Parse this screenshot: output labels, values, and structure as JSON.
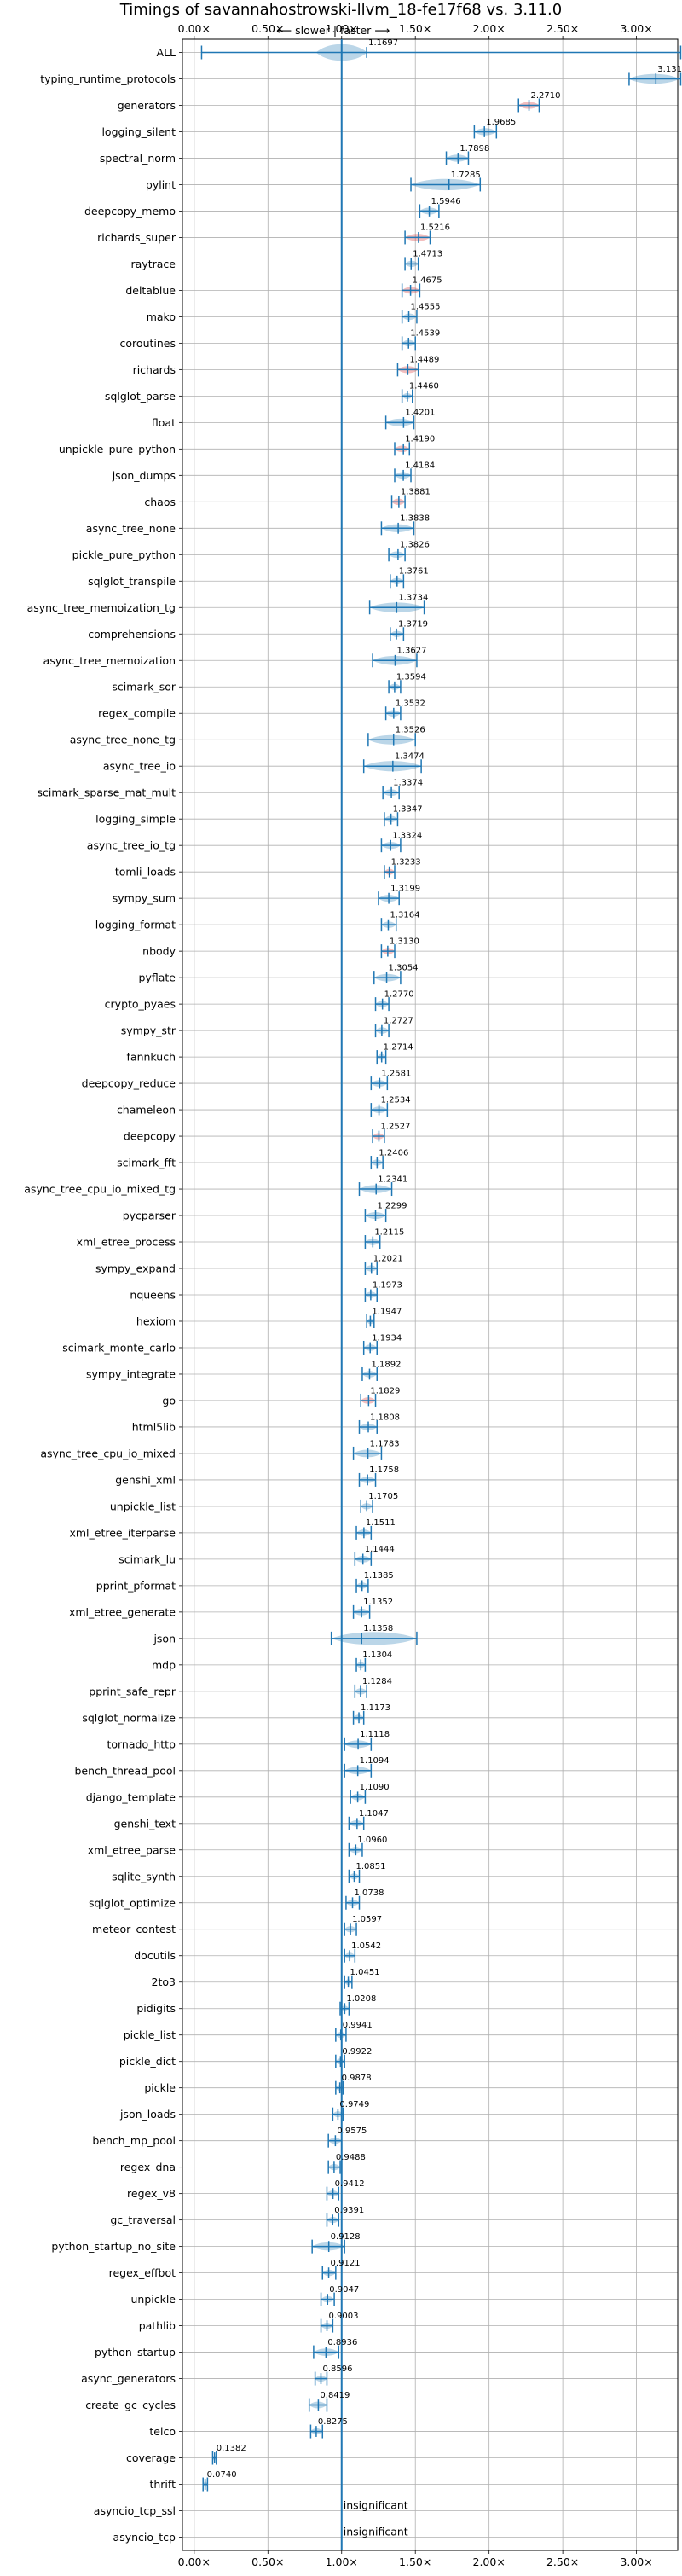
{
  "chart_data": {
    "type": "violin",
    "title": "Timings of savannahostrowski-llvm_18-fe17f68 vs. 3.11.0",
    "direction_label": "⟵ slower | faster ⟶",
    "x_ticks": [
      "0.00×",
      "0.50×",
      "1.00×",
      "1.50×",
      "2.00×",
      "2.50×",
      "3.00×"
    ],
    "x_tick_values": [
      0,
      0.5,
      1.0,
      1.5,
      2.0,
      2.5,
      3.0
    ],
    "xlim": [
      -0.08,
      3.28
    ],
    "reference_line": 1.0,
    "insignificant_text": "insignificant",
    "benchmarks": [
      {
        "name": "ALL",
        "value": 1.1697,
        "low": 0.05,
        "high": 3.3,
        "color": "blue"
      },
      {
        "name": "typing_runtime_protocols",
        "value": 3.1314,
        "low": 2.95,
        "high": 3.3,
        "color": "blue"
      },
      {
        "name": "generators",
        "value": 2.271,
        "low": 2.2,
        "high": 2.34,
        "color": "red"
      },
      {
        "name": "logging_silent",
        "value": 1.9685,
        "low": 1.9,
        "high": 2.05,
        "color": "blue"
      },
      {
        "name": "spectral_norm",
        "value": 1.7898,
        "low": 1.71,
        "high": 1.86,
        "color": "blue"
      },
      {
        "name": "pylint",
        "value": 1.7285,
        "low": 1.47,
        "high": 1.94,
        "color": "blue"
      },
      {
        "name": "deepcopy_memo",
        "value": 1.5946,
        "low": 1.53,
        "high": 1.66,
        "color": "blue"
      },
      {
        "name": "richards_super",
        "value": 1.5216,
        "low": 1.43,
        "high": 1.6,
        "color": "red"
      },
      {
        "name": "raytrace",
        "value": 1.4713,
        "low": 1.43,
        "high": 1.52,
        "color": "blue"
      },
      {
        "name": "deltablue",
        "value": 1.4675,
        "low": 1.41,
        "high": 1.53,
        "color": "red"
      },
      {
        "name": "mako",
        "value": 1.4555,
        "low": 1.41,
        "high": 1.51,
        "color": "blue"
      },
      {
        "name": "coroutines",
        "value": 1.4539,
        "low": 1.41,
        "high": 1.5,
        "color": "blue"
      },
      {
        "name": "richards",
        "value": 1.4489,
        "low": 1.38,
        "high": 1.52,
        "color": "red"
      },
      {
        "name": "sqlglot_parse",
        "value": 1.446,
        "low": 1.41,
        "high": 1.48,
        "color": "blue"
      },
      {
        "name": "float",
        "value": 1.4201,
        "low": 1.3,
        "high": 1.49,
        "color": "blue"
      },
      {
        "name": "unpickle_pure_python",
        "value": 1.419,
        "low": 1.36,
        "high": 1.46,
        "color": "red"
      },
      {
        "name": "json_dumps",
        "value": 1.4184,
        "low": 1.36,
        "high": 1.47,
        "color": "blue"
      },
      {
        "name": "chaos",
        "value": 1.3881,
        "low": 1.34,
        "high": 1.43,
        "color": "red"
      },
      {
        "name": "async_tree_none",
        "value": 1.3838,
        "low": 1.27,
        "high": 1.49,
        "color": "blue"
      },
      {
        "name": "pickle_pure_python",
        "value": 1.3826,
        "low": 1.32,
        "high": 1.43,
        "color": "blue"
      },
      {
        "name": "sqlglot_transpile",
        "value": 1.3761,
        "low": 1.33,
        "high": 1.42,
        "color": "blue"
      },
      {
        "name": "async_tree_memoization_tg",
        "value": 1.3734,
        "low": 1.19,
        "high": 1.56,
        "color": "blue"
      },
      {
        "name": "comprehensions",
        "value": 1.3719,
        "low": 1.33,
        "high": 1.42,
        "color": "blue"
      },
      {
        "name": "async_tree_memoization",
        "value": 1.3627,
        "low": 1.21,
        "high": 1.51,
        "color": "blue"
      },
      {
        "name": "scimark_sor",
        "value": 1.3594,
        "low": 1.32,
        "high": 1.4,
        "color": "blue"
      },
      {
        "name": "regex_compile",
        "value": 1.3532,
        "low": 1.3,
        "high": 1.4,
        "color": "blue"
      },
      {
        "name": "async_tree_none_tg",
        "value": 1.3526,
        "low": 1.18,
        "high": 1.5,
        "color": "blue"
      },
      {
        "name": "async_tree_io",
        "value": 1.3474,
        "low": 1.15,
        "high": 1.54,
        "color": "blue"
      },
      {
        "name": "scimark_sparse_mat_mult",
        "value": 1.3374,
        "low": 1.28,
        "high": 1.39,
        "color": "blue"
      },
      {
        "name": "logging_simple",
        "value": 1.3347,
        "low": 1.29,
        "high": 1.38,
        "color": "blue"
      },
      {
        "name": "async_tree_io_tg",
        "value": 1.3324,
        "low": 1.27,
        "high": 1.4,
        "color": "blue"
      },
      {
        "name": "tomli_loads",
        "value": 1.3233,
        "low": 1.29,
        "high": 1.36,
        "color": "red"
      },
      {
        "name": "sympy_sum",
        "value": 1.3199,
        "low": 1.25,
        "high": 1.39,
        "color": "blue"
      },
      {
        "name": "logging_format",
        "value": 1.3164,
        "low": 1.27,
        "high": 1.37,
        "color": "blue"
      },
      {
        "name": "nbody",
        "value": 1.313,
        "low": 1.27,
        "high": 1.36,
        "color": "red"
      },
      {
        "name": "pyflate",
        "value": 1.3054,
        "low": 1.22,
        "high": 1.4,
        "color": "blue"
      },
      {
        "name": "crypto_pyaes",
        "value": 1.277,
        "low": 1.23,
        "high": 1.32,
        "color": "blue"
      },
      {
        "name": "sympy_str",
        "value": 1.2727,
        "low": 1.23,
        "high": 1.32,
        "color": "blue"
      },
      {
        "name": "fannkuch",
        "value": 1.2714,
        "low": 1.24,
        "high": 1.3,
        "color": "blue"
      },
      {
        "name": "deepcopy_reduce",
        "value": 1.2581,
        "low": 1.2,
        "high": 1.31,
        "color": "blue"
      },
      {
        "name": "chameleon",
        "value": 1.2534,
        "low": 1.2,
        "high": 1.31,
        "color": "blue"
      },
      {
        "name": "deepcopy",
        "value": 1.2527,
        "low": 1.21,
        "high": 1.29,
        "color": "red"
      },
      {
        "name": "scimark_fft",
        "value": 1.2406,
        "low": 1.2,
        "high": 1.28,
        "color": "blue"
      },
      {
        "name": "async_tree_cpu_io_mixed_tg",
        "value": 1.2341,
        "low": 1.12,
        "high": 1.34,
        "color": "blue"
      },
      {
        "name": "pycparser",
        "value": 1.2299,
        "low": 1.16,
        "high": 1.3,
        "color": "blue"
      },
      {
        "name": "xml_etree_process",
        "value": 1.2115,
        "low": 1.16,
        "high": 1.26,
        "color": "blue"
      },
      {
        "name": "sympy_expand",
        "value": 1.2021,
        "low": 1.16,
        "high": 1.24,
        "color": "blue"
      },
      {
        "name": "nqueens",
        "value": 1.1973,
        "low": 1.16,
        "high": 1.24,
        "color": "blue"
      },
      {
        "name": "hexiom",
        "value": 1.1947,
        "low": 1.17,
        "high": 1.22,
        "color": "blue"
      },
      {
        "name": "scimark_monte_carlo",
        "value": 1.1934,
        "low": 1.15,
        "high": 1.24,
        "color": "blue"
      },
      {
        "name": "sympy_integrate",
        "value": 1.1892,
        "low": 1.14,
        "high": 1.24,
        "color": "blue"
      },
      {
        "name": "go",
        "value": 1.1829,
        "low": 1.13,
        "high": 1.23,
        "color": "red"
      },
      {
        "name": "html5lib",
        "value": 1.1808,
        "low": 1.12,
        "high": 1.24,
        "color": "blue"
      },
      {
        "name": "async_tree_cpu_io_mixed",
        "value": 1.1783,
        "low": 1.08,
        "high": 1.27,
        "color": "blue"
      },
      {
        "name": "genshi_xml",
        "value": 1.1758,
        "low": 1.12,
        "high": 1.23,
        "color": "blue"
      },
      {
        "name": "unpickle_list",
        "value": 1.1705,
        "low": 1.13,
        "high": 1.21,
        "color": "blue"
      },
      {
        "name": "xml_etree_iterparse",
        "value": 1.1511,
        "low": 1.1,
        "high": 1.2,
        "color": "blue"
      },
      {
        "name": "scimark_lu",
        "value": 1.1444,
        "low": 1.09,
        "high": 1.2,
        "color": "blue"
      },
      {
        "name": "pprint_pformat",
        "value": 1.1385,
        "low": 1.1,
        "high": 1.18,
        "color": "blue"
      },
      {
        "name": "xml_etree_generate",
        "value": 1.1352,
        "low": 1.08,
        "high": 1.19,
        "color": "blue"
      },
      {
        "name": "json",
        "value": 1.1358,
        "low": 0.93,
        "high": 1.51,
        "color": "blue"
      },
      {
        "name": "mdp",
        "value": 1.1304,
        "low": 1.1,
        "high": 1.16,
        "color": "blue"
      },
      {
        "name": "pprint_safe_repr",
        "value": 1.1284,
        "low": 1.09,
        "high": 1.17,
        "color": "blue"
      },
      {
        "name": "sqlglot_normalize",
        "value": 1.1173,
        "low": 1.08,
        "high": 1.15,
        "color": "blue"
      },
      {
        "name": "tornado_http",
        "value": 1.1118,
        "low": 1.02,
        "high": 1.2,
        "color": "blue"
      },
      {
        "name": "bench_thread_pool",
        "value": 1.1094,
        "low": 1.02,
        "high": 1.2,
        "color": "blue"
      },
      {
        "name": "django_template",
        "value": 1.109,
        "low": 1.06,
        "high": 1.16,
        "color": "blue"
      },
      {
        "name": "genshi_text",
        "value": 1.1047,
        "low": 1.05,
        "high": 1.15,
        "color": "blue"
      },
      {
        "name": "xml_etree_parse",
        "value": 1.096,
        "low": 1.05,
        "high": 1.14,
        "color": "blue"
      },
      {
        "name": "sqlite_synth",
        "value": 1.0851,
        "low": 1.05,
        "high": 1.12,
        "color": "blue"
      },
      {
        "name": "sqlglot_optimize",
        "value": 1.0738,
        "low": 1.03,
        "high": 1.12,
        "color": "blue"
      },
      {
        "name": "meteor_contest",
        "value": 1.0597,
        "low": 1.02,
        "high": 1.1,
        "color": "blue"
      },
      {
        "name": "docutils",
        "value": 1.0542,
        "low": 1.02,
        "high": 1.09,
        "color": "blue"
      },
      {
        "name": "2to3",
        "value": 1.0451,
        "low": 1.02,
        "high": 1.07,
        "color": "blue"
      },
      {
        "name": "pidigits",
        "value": 1.0208,
        "low": 0.99,
        "high": 1.05,
        "color": "blue"
      },
      {
        "name": "pickle_list",
        "value": 0.9941,
        "low": 0.96,
        "high": 1.03,
        "color": "blue"
      },
      {
        "name": "pickle_dict",
        "value": 0.9922,
        "low": 0.96,
        "high": 1.02,
        "color": "blue"
      },
      {
        "name": "pickle",
        "value": 0.9878,
        "low": 0.96,
        "high": 1.01,
        "color": "blue"
      },
      {
        "name": "json_loads",
        "value": 0.9749,
        "low": 0.94,
        "high": 1.01,
        "color": "blue"
      },
      {
        "name": "bench_mp_pool",
        "value": 0.9575,
        "low": 0.91,
        "high": 1.0,
        "color": "blue"
      },
      {
        "name": "regex_dna",
        "value": 0.9488,
        "low": 0.91,
        "high": 0.99,
        "color": "blue"
      },
      {
        "name": "regex_v8",
        "value": 0.9412,
        "low": 0.9,
        "high": 0.98,
        "color": "blue"
      },
      {
        "name": "gc_traversal",
        "value": 0.9391,
        "low": 0.9,
        "high": 0.98,
        "color": "blue"
      },
      {
        "name": "python_startup_no_site",
        "value": 0.9128,
        "low": 0.8,
        "high": 1.02,
        "color": "blue"
      },
      {
        "name": "regex_effbot",
        "value": 0.9121,
        "low": 0.87,
        "high": 0.96,
        "color": "blue"
      },
      {
        "name": "unpickle",
        "value": 0.9047,
        "low": 0.86,
        "high": 0.95,
        "color": "blue"
      },
      {
        "name": "pathlib",
        "value": 0.9003,
        "low": 0.86,
        "high": 0.94,
        "color": "blue"
      },
      {
        "name": "python_startup",
        "value": 0.8936,
        "low": 0.81,
        "high": 0.98,
        "color": "blue"
      },
      {
        "name": "async_generators",
        "value": 0.8596,
        "low": 0.82,
        "high": 0.9,
        "color": "blue"
      },
      {
        "name": "create_gc_cycles",
        "value": 0.8419,
        "low": 0.78,
        "high": 0.9,
        "color": "blue"
      },
      {
        "name": "telco",
        "value": 0.8275,
        "low": 0.79,
        "high": 0.87,
        "color": "blue"
      },
      {
        "name": "coverage",
        "value": 0.1382,
        "low": 0.125,
        "high": 0.15,
        "color": "blue"
      },
      {
        "name": "thrift",
        "value": 0.074,
        "low": 0.06,
        "high": 0.09,
        "color": "blue"
      },
      {
        "name": "asyncio_tcp_ssl",
        "value": null,
        "low": null,
        "high": null,
        "color": "none"
      },
      {
        "name": "asyncio_tcp",
        "value": null,
        "low": null,
        "high": null,
        "color": "none"
      }
    ],
    "colors": {
      "line": "#1f77b4",
      "violin_blue": "#1f77b4",
      "violin_red": "#d62728",
      "grid": "#b0b0b0"
    }
  }
}
